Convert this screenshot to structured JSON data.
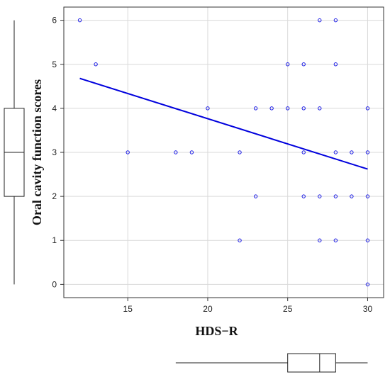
{
  "chart_data": {
    "type": "scatter",
    "xlabel": "HDS−R",
    "ylabel": "Oral cavity function scores",
    "xlim": [
      11,
      31
    ],
    "ylim": [
      -0.3,
      6.3
    ],
    "x_ticks": [
      "15",
      "20",
      "25",
      "30"
    ],
    "y_ticks": [
      "0",
      "1",
      "2",
      "3",
      "4",
      "5",
      "6"
    ],
    "grid": true,
    "points": [
      {
        "x": 12,
        "y": 6
      },
      {
        "x": 27,
        "y": 6
      },
      {
        "x": 28,
        "y": 6
      },
      {
        "x": 13,
        "y": 5
      },
      {
        "x": 25,
        "y": 5
      },
      {
        "x": 26,
        "y": 5
      },
      {
        "x": 28,
        "y": 5
      },
      {
        "x": 20,
        "y": 4
      },
      {
        "x": 23,
        "y": 4
      },
      {
        "x": 24,
        "y": 4
      },
      {
        "x": 25,
        "y": 4
      },
      {
        "x": 26,
        "y": 4
      },
      {
        "x": 27,
        "y": 4
      },
      {
        "x": 30,
        "y": 4
      },
      {
        "x": 15,
        "y": 3
      },
      {
        "x": 18,
        "y": 3
      },
      {
        "x": 19,
        "y": 3
      },
      {
        "x": 22,
        "y": 3
      },
      {
        "x": 26,
        "y": 3
      },
      {
        "x": 28,
        "y": 3
      },
      {
        "x": 29,
        "y": 3
      },
      {
        "x": 30,
        "y": 3
      },
      {
        "x": 23,
        "y": 2
      },
      {
        "x": 26,
        "y": 2
      },
      {
        "x": 27,
        "y": 2
      },
      {
        "x": 28,
        "y": 2
      },
      {
        "x": 29,
        "y": 2
      },
      {
        "x": 30,
        "y": 2
      },
      {
        "x": 22,
        "y": 1
      },
      {
        "x": 27,
        "y": 1
      },
      {
        "x": 28,
        "y": 1
      },
      {
        "x": 30,
        "y": 1
      },
      {
        "x": 30,
        "y": 0
      }
    ],
    "trend_line": {
      "x": [
        12,
        30
      ],
      "y": [
        4.68,
        2.62
      ]
    },
    "marginal_boxplot_x": {
      "min": 18,
      "q1": 25,
      "median": 27,
      "q3": 28,
      "max": 30
    },
    "marginal_boxplot_y": {
      "min": 0,
      "q1": 2,
      "median": 3,
      "q3": 4,
      "max": 6
    },
    "colors": {
      "points": "#1a1ae6",
      "trend_line": "#0000dd",
      "grid": "#d9d9d9",
      "box": "#222222"
    }
  }
}
